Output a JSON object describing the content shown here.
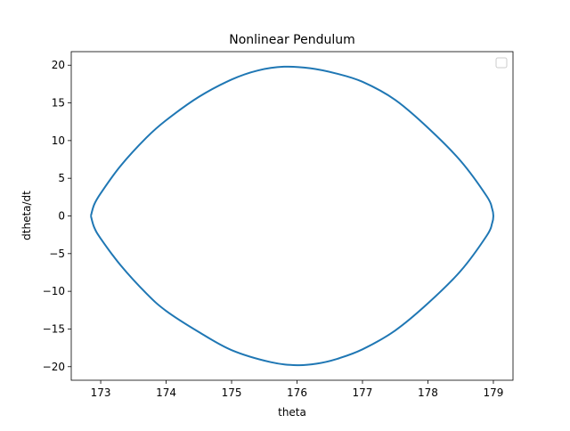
{
  "chart_data": {
    "type": "line",
    "title": "Nonlinear Pendulum",
    "xlabel": "theta",
    "ylabel": "dtheta/dt",
    "xlim": [
      172.55,
      179.3
    ],
    "ylim": [
      -21.8,
      21.8
    ],
    "xticks": [
      173,
      174,
      175,
      176,
      177,
      178,
      179
    ],
    "yticks": [
      -20,
      -15,
      -10,
      -5,
      0,
      5,
      10,
      15,
      20
    ],
    "grid": false,
    "legend": "top-right",
    "series": [
      {
        "color": "#1f77b4",
        "x": [
          172.85,
          172.9,
          173.0,
          173.3,
          173.7,
          174.0,
          174.5,
          175.0,
          175.4,
          175.8,
          176.2,
          176.6,
          177.0,
          177.5,
          178.0,
          178.5,
          178.9,
          178.98,
          179.0,
          178.98,
          178.9,
          178.5,
          178.0,
          177.5,
          177.0,
          176.6,
          176.3,
          176.0,
          175.6,
          175.0,
          174.5,
          174.0,
          173.7,
          173.3,
          173.0,
          172.9,
          172.85
        ],
        "y": [
          0.0,
          1.5,
          3.0,
          6.6,
          10.4,
          12.7,
          15.8,
          18.1,
          19.3,
          19.8,
          19.6,
          18.9,
          17.8,
          15.4,
          11.7,
          7.3,
          2.6,
          1.0,
          0.0,
          -1.0,
          -2.6,
          -7.3,
          -11.6,
          -15.2,
          -17.7,
          -19.0,
          -19.6,
          -19.8,
          -19.4,
          -17.8,
          -15.4,
          -12.6,
          -10.3,
          -6.5,
          -3.0,
          -1.5,
          0.0
        ]
      }
    ]
  }
}
